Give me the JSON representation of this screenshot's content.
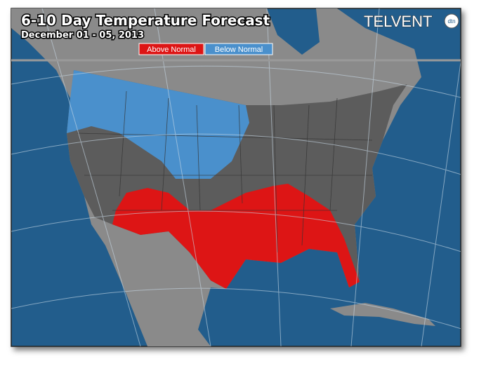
{
  "header": {
    "title": "6-10 Day Temperature Forecast",
    "subtitle": "December 01 - 05, 2013"
  },
  "legend": {
    "items": [
      {
        "label": "Above Normal",
        "color": "#dd1515"
      },
      {
        "label": "Below Normal",
        "color": "#4a90cc"
      }
    ]
  },
  "logo": {
    "text": "TELVENT",
    "badge": "dtn"
  }
}
